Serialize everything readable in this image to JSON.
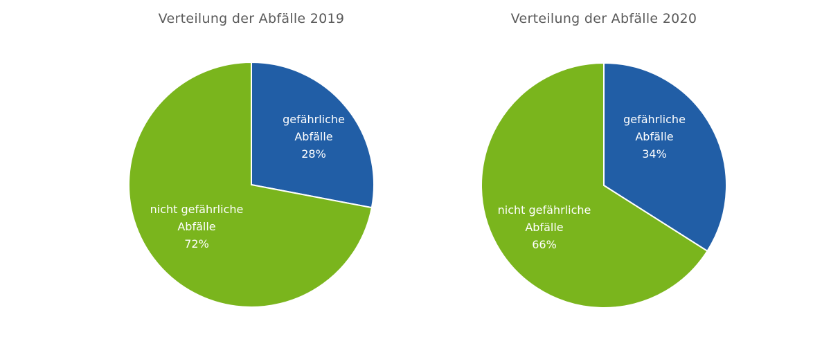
{
  "colors": {
    "hazardous": "#215ea6",
    "non_hazardous": "#7ab51d",
    "title": "#5a5a5a"
  },
  "charts": [
    {
      "title": "Verteilung der Abfälle 2019",
      "slices": [
        {
          "label_line1": "gefährliche",
          "label_line2": "Abfälle",
          "percent": "28%"
        },
        {
          "label_line1": "nicht gefährliche",
          "label_line2": "Abfälle",
          "percent": "72%"
        }
      ]
    },
    {
      "title": "Verteilung der Abfälle 2020",
      "slices": [
        {
          "label_line1": "gefährliche",
          "label_line2": "Abfälle",
          "percent": "34%"
        },
        {
          "label_line1": "nicht gefährliche",
          "label_line2": "Abfälle",
          "percent": "66%"
        }
      ]
    }
  ],
  "chart_data": [
    {
      "type": "pie",
      "title": "Verteilung der Abfälle 2019",
      "categories": [
        "gefährliche Abfälle",
        "nicht gefährliche Abfälle"
      ],
      "values": [
        28,
        72
      ],
      "colors": [
        "#215ea6",
        "#7ab51d"
      ],
      "legend": "none (inline labels)"
    },
    {
      "type": "pie",
      "title": "Verteilung der Abfälle 2020",
      "categories": [
        "gefährliche Abfälle",
        "nicht gefährliche Abfälle"
      ],
      "values": [
        34,
        66
      ],
      "colors": [
        "#215ea6",
        "#7ab51d"
      ],
      "legend": "none (inline labels)"
    }
  ]
}
